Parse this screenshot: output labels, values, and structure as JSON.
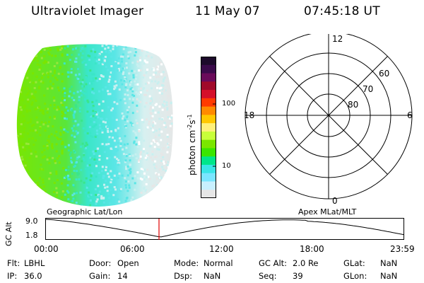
{
  "header": {
    "instrument": "Ultraviolet Imager",
    "date": "11 May 07",
    "time": "07:45:18 UT"
  },
  "colorbar": {
    "label_text": "photon cm",
    "label_exp1": "-2",
    "label_mid": "s",
    "label_exp2": "-1",
    "tick_100": "100",
    "tick_10": "10",
    "colors": [
      "#1c0a2a",
      "#3a0a4a",
      "#6a0a5a",
      "#a00a2a",
      "#d4102a",
      "#ff3a00",
      "#ff8a00",
      "#ffc800",
      "#fff07a",
      "#c8ff3a",
      "#7ae600",
      "#3ae600",
      "#00e68a",
      "#3ae6e6",
      "#7ae6ff",
      "#c8f0ff",
      "#e6e6e6"
    ]
  },
  "polar": {
    "mlt_12": "12",
    "mlt_18": "18",
    "mlt_6": "6",
    "mlt_0": "0",
    "lat_60": "60",
    "lat_70": "70",
    "lat_80": "80"
  },
  "timeline": {
    "left_title": "Geographic Lat/Lon",
    "right_title": "Apex  MLat/MLT",
    "y_axis_label": "GC Alt",
    "y_max": "9.0",
    "y_min": "1.8",
    "x_ticks": [
      "00:00",
      "06:00",
      "12:00",
      "18:00",
      "23:59"
    ],
    "marker_color": "#e00000"
  },
  "info": {
    "flt_label": "Flt:",
    "flt_value": "LBHL",
    "ip_label": "IP:",
    "ip_value": "36.0",
    "door_label": "Door:",
    "door_value": "Open",
    "gain_label": "Gain:",
    "gain_value": "14",
    "mode_label": "Mode:",
    "mode_value": "Normal",
    "dsp_label": "Dsp:",
    "dsp_value": "NaN",
    "gcalt_label": "GC Alt:",
    "gcalt_value": "2.0 Re",
    "seq_label": "Seq:",
    "seq_value": "39",
    "glat_label": "GLat:",
    "glat_value": "NaN",
    "glon_label": "GLon:",
    "glon_value": "NaN"
  }
}
